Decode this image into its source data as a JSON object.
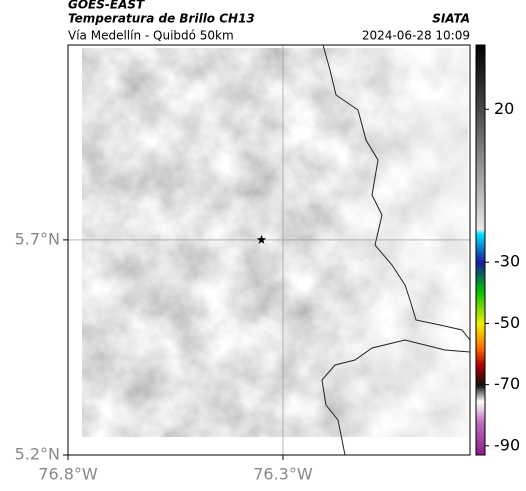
{
  "chart_data": {
    "type": "map",
    "title": "GOES-EAST",
    "subtitle": "Temperatura de Brillo CH13",
    "region": "Vía Medellín - Quibdó 50km",
    "source": "SIATA",
    "timestamp": "2024-06-28 10:09",
    "xlim": [
      -76.8,
      -75.865
    ],
    "ylim": [
      5.2,
      6.153
    ],
    "xticks": [
      {
        "value": -76.8,
        "label": "76.8°W"
      },
      {
        "value": -76.3,
        "label": "76.3°W"
      }
    ],
    "yticks": [
      {
        "value": 5.2,
        "label": "5.2°N"
      },
      {
        "value": 5.7,
        "label": "5.7°N"
      }
    ],
    "grid": true,
    "marker": {
      "x": -76.35,
      "y": 5.7
    },
    "colorbar": {
      "lim": [
        -93,
        41
      ],
      "ticks": [
        20,
        -30,
        -50,
        -70,
        -90
      ]
    }
  }
}
